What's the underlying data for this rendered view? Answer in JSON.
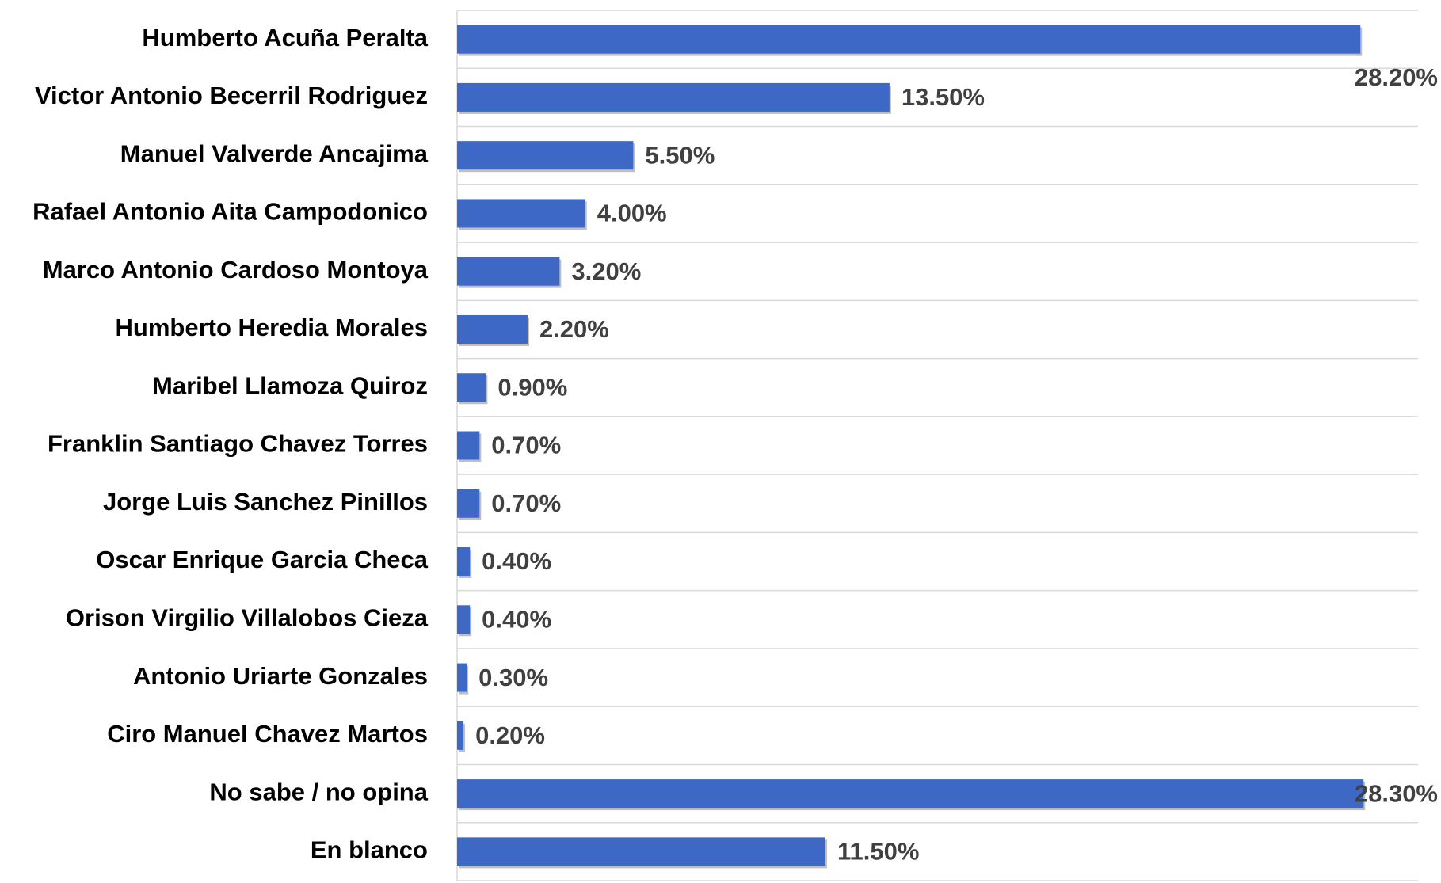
{
  "chart_data": {
    "type": "bar",
    "orientation": "horizontal",
    "categories": [
      "Humberto Acuña Peralta",
      "Victor Antonio Becerril Rodriguez",
      "Manuel Valverde Ancajima",
      "Rafael Antonio Aita Campodonico",
      "Marco Antonio Cardoso Montoya",
      "Humberto Heredia Morales",
      "Maribel Llamoza Quiroz",
      "Franklin Santiago Chavez Torres",
      "Jorge Luis Sanchez Pinillos",
      "Oscar Enrique Garcia Checa",
      "Orison Virgilio Villalobos Cieza",
      "Antonio Uriarte Gonzales",
      "Ciro Manuel Chavez Martos",
      "No sabe / no opina",
      "En blanco"
    ],
    "values": [
      28.2,
      13.5,
      5.5,
      4.0,
      3.2,
      2.2,
      0.9,
      0.7,
      0.7,
      0.4,
      0.4,
      0.3,
      0.2,
      28.3,
      11.5
    ],
    "value_labels": [
      "28.20%",
      "13.50%",
      "5.50%",
      "4.00%",
      "3.20%",
      "2.20%",
      "0.90%",
      "0.70%",
      "0.70%",
      "0.40%",
      "0.40%",
      "0.30%",
      "0.20%",
      "28.30%",
      "11.50%"
    ],
    "color": "#3d68c6",
    "xlim": [
      0,
      30
    ],
    "grid": true
  }
}
